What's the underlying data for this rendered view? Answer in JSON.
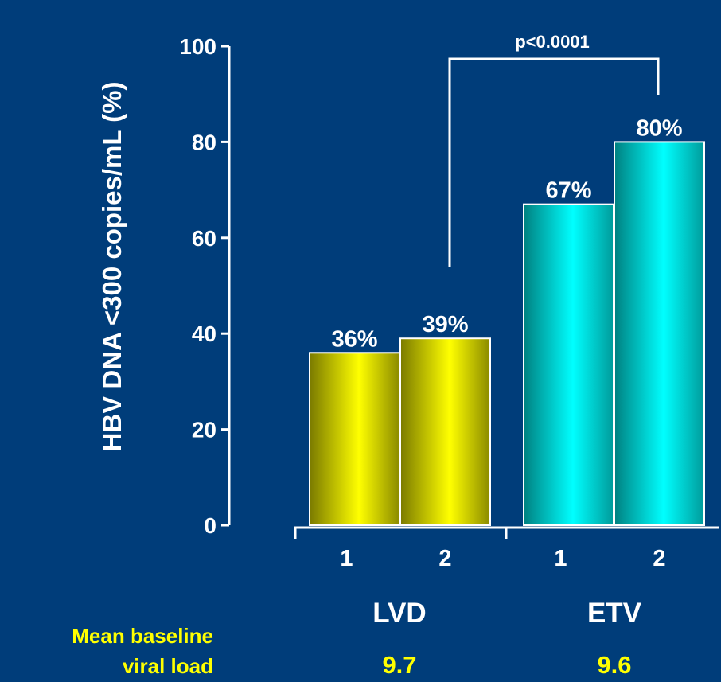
{
  "chart_data": {
    "type": "bar",
    "ylabel": "HBV DNA <300 copies/mL (%)",
    "ylim": [
      0,
      100
    ],
    "yticks": [
      0,
      20,
      40,
      60,
      80,
      100
    ],
    "groups": [
      {
        "name": "LVD",
        "color": "#d8d800",
        "categories": [
          "1",
          "2"
        ],
        "values": [
          36,
          39
        ],
        "data_labels": [
          "36%",
          "39%"
        ],
        "mean_baseline_viral_load": "9.7"
      },
      {
        "name": "ETV",
        "color": "#00d8d8",
        "categories": [
          "1",
          "2"
        ],
        "values": [
          67,
          80
        ],
        "data_labels": [
          "67%",
          "80%"
        ],
        "mean_baseline_viral_load": "9.6"
      }
    ],
    "annotation": "p<0.0001",
    "baseline_label_line1": "Mean baseline",
    "baseline_label_line2": "viral load"
  }
}
